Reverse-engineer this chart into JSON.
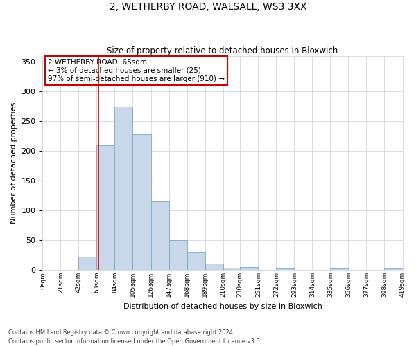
{
  "title": "2, WETHERBY ROAD, WALSALL, WS3 3XX",
  "subtitle": "Size of property relative to detached houses in Bloxwich",
  "xlabel": "Distribution of detached houses by size in Bloxwich",
  "ylabel": "Number of detached properties",
  "bar_color": "#c8d8ea",
  "bar_edge_color": "#7aaac8",
  "grid_color": "#d0d8e0",
  "background_color": "#ffffff",
  "bin_edges": [
    0,
    21,
    42,
    63,
    84,
    105,
    126,
    147,
    168,
    189,
    210,
    230,
    251,
    272,
    293,
    314,
    335,
    356,
    377,
    398,
    419
  ],
  "bin_labels": [
    "0sqm",
    "21sqm",
    "42sqm",
    "63sqm",
    "84sqm",
    "105sqm",
    "126sqm",
    "147sqm",
    "168sqm",
    "189sqm",
    "210sqm",
    "230sqm",
    "251sqm",
    "272sqm",
    "293sqm",
    "314sqm",
    "335sqm",
    "356sqm",
    "377sqm",
    "398sqm",
    "419sqm"
  ],
  "bar_heights": [
    0,
    0,
    22,
    210,
    275,
    228,
    115,
    50,
    30,
    10,
    3,
    5,
    0,
    2,
    0,
    0,
    2,
    0,
    0,
    2
  ],
  "ylim": [
    0,
    360
  ],
  "yticks": [
    0,
    50,
    100,
    150,
    200,
    250,
    300,
    350
  ],
  "property_line_x": 65,
  "annotation_text": "2 WETHERBY ROAD: 65sqm\n← 3% of detached houses are smaller (25)\n97% of semi-detached houses are larger (910) →",
  "annotation_box_color": "#ffffff",
  "annotation_box_edge_color": "#cc0000",
  "vline_color": "#cc0000",
  "footnote": "Contains HM Land Registry data © Crown copyright and database right 2024.\nContains public sector information licensed under the Open Government Licence v3.0."
}
